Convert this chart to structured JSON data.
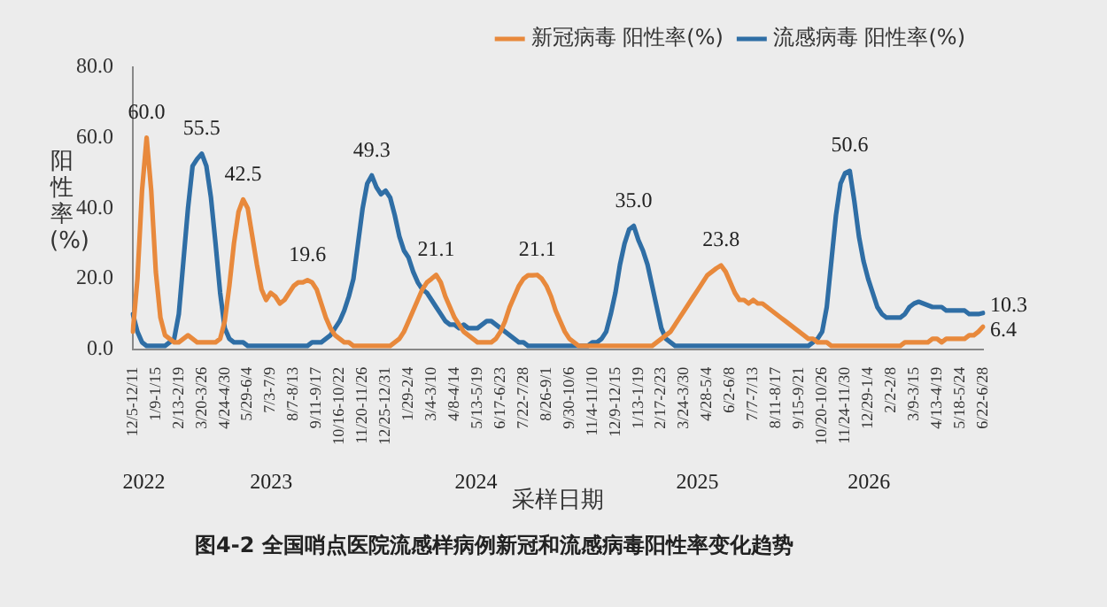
{
  "chart_data": {
    "type": "line",
    "xlabel": "采样日期",
    "ylabel": "阳性率(%)",
    "categories": [
      "12/5-12/11",
      null,
      null,
      null,
      null,
      "1/9-1/15",
      null,
      null,
      null,
      null,
      "2/13-2/19",
      null,
      null,
      null,
      null,
      "3/20-3/26",
      null,
      null,
      null,
      null,
      "4/24-4/30",
      null,
      null,
      null,
      null,
      "5/29-6/4",
      null,
      null,
      null,
      null,
      "7/3-7/9",
      null,
      null,
      null,
      null,
      "8/7-8/13",
      null,
      null,
      null,
      null,
      "9/11-9/17",
      null,
      null,
      null,
      null,
      "10/16-10/22",
      null,
      null,
      null,
      null,
      "11/20-11/26",
      null,
      null,
      null,
      null,
      "12/25-12/31",
      null,
      null,
      null,
      null,
      "1/29-2/4",
      null,
      null,
      null,
      null,
      "3/4-3/10",
      null,
      null,
      null,
      null,
      "4/8-4/14",
      null,
      null,
      null,
      null,
      "5/13-5/19",
      null,
      null,
      null,
      null,
      "6/17-6/23",
      null,
      null,
      null,
      null,
      "7/22-7/28",
      null,
      null,
      null,
      null,
      "8/26-9/1",
      null,
      null,
      null,
      null,
      "9/30-10/6",
      null,
      null,
      null,
      null,
      "11/4-11/10",
      null,
      null,
      null,
      null,
      "12/9-12/15",
      null,
      null,
      null,
      null,
      "1/13-1/19",
      null,
      null,
      null,
      null,
      "2/17-2/23",
      null,
      null,
      null,
      null,
      "3/24-3/30",
      null,
      null,
      null,
      null,
      "4/28-5/4",
      null,
      null,
      null,
      null,
      "6/2-6/8",
      null,
      null,
      null,
      null,
      "7/7-7/13",
      null,
      null,
      null,
      null,
      "8/11-8/17",
      null,
      null,
      null,
      null,
      "9/15-9/21",
      null,
      null,
      null,
      null,
      "10/20-10/26",
      null,
      null,
      null,
      null,
      "11/24-11/30",
      null,
      null,
      null,
      null,
      "12/29-1/4",
      null,
      null,
      null,
      null,
      "2/2-2/8",
      null,
      null,
      null,
      null,
      "3/9-3/15",
      null,
      null,
      null,
      null,
      "4/13-4/19",
      null,
      null,
      null,
      null,
      "5/18-5/24",
      null,
      null,
      null,
      null,
      "6/22-6/28"
    ],
    "series": [
      {
        "name": "新冠病毒 阳性率(%)",
        "color": "#e8893c",
        "values": [
          5,
          20,
          45,
          60.0,
          45,
          22,
          9,
          4,
          3,
          2,
          2,
          3,
          4,
          3,
          2,
          2,
          2,
          2,
          2,
          3,
          8,
          18,
          30,
          39,
          42.5,
          40,
          32,
          24,
          17,
          14,
          16,
          15,
          13,
          14,
          16,
          18,
          19,
          19,
          19.6,
          19,
          17,
          13,
          9,
          6,
          4,
          3,
          2,
          2,
          1,
          1,
          1,
          1,
          1,
          1,
          1,
          1,
          1,
          2,
          3,
          5,
          8,
          11,
          14,
          17,
          19,
          20,
          21.1,
          19,
          15,
          12,
          9,
          7,
          5,
          4,
          3,
          2,
          2,
          2,
          2,
          3,
          5,
          8,
          12,
          15,
          18,
          20,
          21,
          21,
          21.1,
          20,
          18,
          15,
          11,
          8,
          5,
          3,
          2,
          1,
          1,
          1,
          1,
          1,
          1,
          1,
          1,
          1,
          1,
          1,
          1,
          1,
          1,
          1,
          1,
          1,
          2,
          3,
          4,
          5,
          7,
          9,
          11,
          13,
          15,
          17,
          19,
          21,
          22,
          23,
          23.8,
          22,
          19,
          16,
          14,
          14,
          13,
          14,
          13,
          13,
          12,
          11,
          10,
          9,
          8,
          7,
          6,
          5,
          4,
          3,
          3,
          2,
          2,
          2,
          1,
          1,
          1,
          1,
          1,
          1,
          1,
          1,
          1,
          1,
          1,
          1,
          1,
          1,
          1,
          1,
          2,
          2,
          2,
          2,
          2,
          2,
          3,
          3,
          2,
          3,
          3,
          3,
          3,
          3,
          4,
          4,
          5,
          6.4
        ],
        "value_labels": [
          null,
          null,
          null,
          "60.0",
          null,
          null,
          null,
          null,
          null,
          null,
          null,
          null,
          null,
          null,
          null,
          null,
          null,
          null,
          null,
          null,
          null,
          null,
          null,
          null,
          "42.5",
          null,
          null,
          null,
          null,
          null,
          null,
          null,
          null,
          null,
          null,
          null,
          null,
          null,
          "19.6",
          null,
          null,
          null,
          null,
          null,
          null,
          null,
          null,
          null,
          null,
          null,
          null,
          null,
          null,
          null,
          null,
          null,
          null,
          null,
          null,
          null,
          null,
          null,
          null,
          null,
          null,
          null,
          "21.1",
          null,
          null,
          null,
          null,
          null,
          null,
          null,
          null,
          null,
          null,
          null,
          null,
          null,
          null,
          null,
          null,
          null,
          null,
          null,
          null,
          null,
          "21.1",
          null,
          null,
          null,
          null,
          null,
          null,
          null,
          null,
          null,
          null,
          null,
          null,
          null,
          null,
          null,
          null,
          null,
          null,
          null,
          null,
          null,
          null,
          null,
          null,
          null,
          null,
          null,
          null,
          null,
          null,
          null,
          null,
          null,
          null,
          null,
          null,
          null,
          null,
          null,
          "23.8",
          null,
          null,
          null,
          null,
          null,
          null,
          null,
          null,
          null,
          null,
          null,
          null,
          null,
          null,
          null,
          null,
          null,
          null,
          null,
          null,
          null,
          null,
          null,
          null,
          null,
          null,
          null,
          null,
          null,
          null,
          null,
          null,
          null,
          null,
          null,
          null,
          null,
          null,
          null,
          null,
          null,
          null,
          null,
          null,
          null,
          null,
          null,
          null,
          null,
          null,
          null,
          null,
          null,
          null,
          null,
          null,
          "6.4"
        ]
      },
      {
        "name": "流感病毒 阳性率(%)",
        "color": "#2f6ea5",
        "values": [
          10,
          5,
          2,
          1,
          1,
          1,
          1,
          1,
          2,
          3,
          10,
          25,
          40,
          52,
          54,
          55.5,
          52,
          43,
          30,
          16,
          6,
          3,
          2,
          2,
          2,
          1,
          1,
          1,
          1,
          1,
          1,
          1,
          1,
          1,
          1,
          1,
          1,
          1,
          1,
          2,
          2,
          2,
          3,
          4,
          6,
          8,
          11,
          15,
          20,
          30,
          40,
          47,
          49.3,
          46,
          44,
          45,
          43,
          38,
          32,
          28,
          26,
          22,
          19,
          17,
          16,
          14,
          12,
          10,
          8,
          7,
          7,
          6,
          7,
          6,
          6,
          6,
          7,
          8,
          8,
          7,
          6,
          5,
          4,
          3,
          2,
          2,
          1,
          1,
          1,
          1,
          1,
          1,
          1,
          1,
          1,
          1,
          1,
          1,
          1,
          1,
          2,
          2,
          3,
          5,
          10,
          16,
          24,
          30,
          34,
          35.0,
          31,
          28,
          24,
          18,
          12,
          6,
          3,
          2,
          1,
          1,
          1,
          1,
          1,
          1,
          1,
          1,
          1,
          1,
          1,
          1,
          1,
          1,
          1,
          1,
          1,
          1,
          1,
          1,
          1,
          1,
          1,
          1,
          1,
          1,
          1,
          1,
          1,
          1,
          2,
          3,
          5,
          12,
          25,
          38,
          47,
          50,
          50.6,
          42,
          32,
          25,
          20,
          16,
          12,
          10,
          9,
          9,
          9,
          9,
          10,
          12,
          13,
          13.5,
          13,
          12.5,
          12,
          12,
          12,
          11,
          11,
          11,
          11,
          11,
          10,
          10,
          10,
          10.3
        ],
        "value_labels": [
          null,
          null,
          null,
          null,
          null,
          null,
          null,
          null,
          null,
          null,
          null,
          null,
          null,
          null,
          null,
          "55.5",
          null,
          null,
          null,
          null,
          null,
          null,
          null,
          null,
          null,
          null,
          null,
          null,
          null,
          null,
          null,
          null,
          null,
          null,
          null,
          null,
          null,
          null,
          null,
          null,
          null,
          null,
          null,
          null,
          null,
          null,
          null,
          null,
          null,
          null,
          null,
          null,
          "49.3",
          null,
          null,
          null,
          null,
          null,
          null,
          null,
          null,
          null,
          null,
          null,
          null,
          null,
          null,
          null,
          null,
          null,
          null,
          null,
          null,
          null,
          null,
          null,
          null,
          null,
          null,
          null,
          null,
          null,
          null,
          null,
          null,
          null,
          null,
          null,
          null,
          null,
          null,
          null,
          null,
          null,
          null,
          null,
          null,
          null,
          null,
          null,
          null,
          null,
          null,
          null,
          null,
          null,
          null,
          null,
          null,
          "35.0",
          null,
          null,
          null,
          null,
          null,
          null,
          null,
          null,
          null,
          null,
          null,
          null,
          null,
          null,
          null,
          null,
          null,
          null,
          null,
          null,
          null,
          null,
          null,
          null,
          null,
          null,
          null,
          null,
          null,
          null,
          null,
          null,
          null,
          null,
          null,
          null,
          null,
          null,
          null,
          null,
          null,
          null,
          null,
          null,
          null,
          null,
          "50.6",
          null,
          null,
          null,
          null,
          null,
          null,
          null,
          null,
          null,
          null,
          null,
          null,
          null,
          null,
          null,
          null,
          null,
          null,
          null,
          null,
          null,
          null,
          null,
          null,
          null,
          null,
          null,
          null,
          "10.3"
        ]
      }
    ],
    "ylim": [
      0,
      80
    ],
    "yticks": [
      {
        "value": 0,
        "label": "0.0"
      },
      {
        "value": 20,
        "label": "20.0"
      },
      {
        "value": 40,
        "label": "40.0"
      },
      {
        "value": 60,
        "label": "60.0"
      },
      {
        "value": 80,
        "label": "80.0"
      }
    ],
    "grid": false,
    "legend": "top right",
    "marker": "none",
    "line_style": "solid",
    "title": "图4-2 全国哨点医院流感样病例新冠和流感病毒阳性率变化趋势",
    "annotations": [
      "2022",
      "2023",
      "2024",
      "2025",
      "2026"
    ]
  }
}
